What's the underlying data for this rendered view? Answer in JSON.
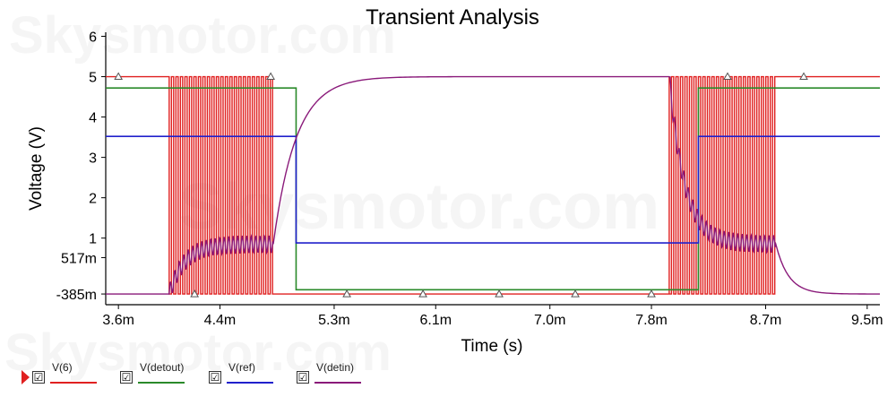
{
  "chart_data": {
    "type": "line",
    "title": "Transient Analysis",
    "xlabel": "Time (s)",
    "ylabel": "Voltage (V)",
    "xlim": [
      0.0035,
      0.0096
    ],
    "ylim": [
      -0.65,
      6.1
    ],
    "x_ticks": [
      {
        "value": 0.0036,
        "label": "3.6m"
      },
      {
        "value": 0.0044,
        "label": "4.4m"
      },
      {
        "value": 0.0053,
        "label": "5.3m"
      },
      {
        "value": 0.0061,
        "label": "6.1m"
      },
      {
        "value": 0.007,
        "label": "7.0m"
      },
      {
        "value": 0.0078,
        "label": "7.8m"
      },
      {
        "value": 0.0087,
        "label": "8.7m"
      },
      {
        "value": 0.0095,
        "label": "9.5m"
      }
    ],
    "y_ticks": [
      {
        "value": 6,
        "label": "6"
      },
      {
        "value": 5,
        "label": "5"
      },
      {
        "value": 4,
        "label": "4"
      },
      {
        "value": 3,
        "label": "3"
      },
      {
        "value": 2,
        "label": "2"
      },
      {
        "value": 1,
        "label": "1"
      },
      {
        "value": 0.517,
        "label": "517m"
      },
      {
        "value": -0.385,
        "label": "-385m"
      }
    ],
    "grid": false,
    "legend_position": "bottom-left",
    "series": [
      {
        "name": "V(6)",
        "color": "#e02020",
        "kind": "pulse-bursts",
        "low": -0.385,
        "high": 5.0,
        "bursts": [
          {
            "start": 0.004,
            "end": 0.00482,
            "period": 3.54e-05
          },
          {
            "start": 0.00794,
            "end": 0.00878,
            "period": 3.54e-05
          }
        ],
        "idle_segments": [
          {
            "x": [
              0.0035,
              0.004
            ],
            "y": 5.0
          },
          {
            "x": [
              0.00482,
              0.00794
            ],
            "y": -0.385
          },
          {
            "x": [
              0.00878,
              0.0096
            ],
            "y": 5.0
          }
        ]
      },
      {
        "name": "V(detout)",
        "color": "#2a8a2a",
        "x": [
          0.0035,
          0.005,
          0.005,
          0.00817,
          0.00817,
          0.0096
        ],
        "y": [
          4.72,
          4.72,
          -0.28,
          -0.28,
          4.72,
          4.72
        ]
      },
      {
        "name": "V(ref)",
        "color": "#2020cc",
        "x": [
          0.0035,
          0.005,
          0.005,
          0.00817,
          0.00817,
          0.0096
        ],
        "y": [
          3.52,
          3.52,
          0.88,
          0.88,
          3.52,
          3.52
        ]
      },
      {
        "name": "V(detin)",
        "color": "#8a1a7a",
        "kind": "rc-detector",
        "low": -0.385,
        "plateau": 5.0,
        "ripple_level": 0.85,
        "charge_start": 0.00482,
        "decay_start": 0.00878
      }
    ],
    "cursor_markers": {
      "x": [
        0.0036,
        0.0042,
        0.0048,
        0.0054,
        0.006,
        0.0066,
        0.0072,
        0.0078,
        0.0084,
        0.009
      ]
    }
  },
  "watermark": "Skysmotor.com",
  "legend": [
    {
      "label": "V(6)",
      "color": "#e02020",
      "checked": "☑"
    },
    {
      "label": "V(detout)",
      "color": "#2a8a2a",
      "checked": "☑"
    },
    {
      "label": "V(ref)",
      "color": "#2020cc",
      "checked": "☑"
    },
    {
      "label": "V(detin)",
      "color": "#8a1a7a",
      "checked": "☑"
    }
  ]
}
